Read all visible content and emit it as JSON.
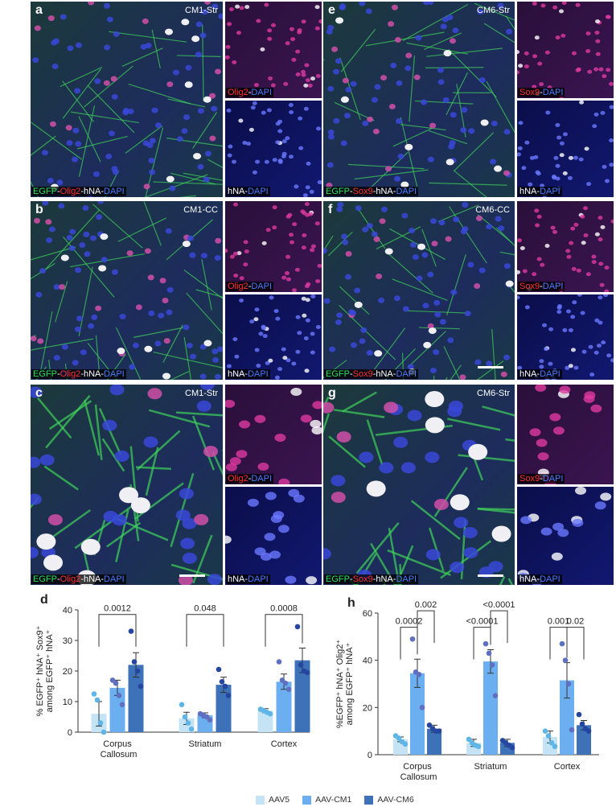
{
  "panels": [
    {
      "letter": "a",
      "corner": "CM1-Str",
      "label": [
        "EGFP",
        "-",
        "Olig2",
        "-hNA-",
        "DAPI"
      ],
      "small_top": [
        "Olig2",
        "-",
        "DAPI"
      ],
      "small_bottom": [
        "hNA-",
        "DAPI"
      ]
    },
    {
      "letter": "e",
      "corner": "CM6-Str",
      "label": [
        "EGFP",
        "-",
        "Sox9",
        "-hNA-",
        "DAPI"
      ],
      "small_top": [
        "Sox9",
        "-",
        "DAPI"
      ],
      "small_bottom": [
        "hNA-",
        "DAPI"
      ]
    },
    {
      "letter": "b",
      "corner": "CM1-CC",
      "label": [
        "EGFP",
        "-",
        "Olig2",
        "-hNA-",
        "DAPI"
      ],
      "small_top": [
        "Olig2",
        "-",
        "DAPI"
      ],
      "small_bottom": [
        "hNA-",
        "DAPI"
      ]
    },
    {
      "letter": "f",
      "corner": "CM6-CC",
      "label": [
        "EGFP",
        "-",
        "Sox9",
        "-hNA-",
        "DAPI"
      ],
      "small_top": [
        "Sox9",
        "-",
        "DAPI"
      ],
      "small_bottom": [
        "hNA-",
        "DAPI"
      ]
    },
    {
      "letter": "c",
      "corner": "CM1-Str",
      "label": [
        "EGFP",
        "-",
        "Olig2",
        "-hNA-",
        "DAPI"
      ],
      "small_top": [
        "Olig2",
        "-",
        "DAPI"
      ],
      "small_bottom": [
        "hNA-",
        "DAPI"
      ]
    },
    {
      "letter": "g",
      "corner": "CM6-Str",
      "label": [
        "EGFP",
        "-",
        "Sox9",
        "-hNA-",
        "DAPI"
      ],
      "small_top": [
        "Sox9",
        "-",
        "DAPI"
      ],
      "small_bottom": [
        "hNA-",
        "DAPI"
      ]
    }
  ],
  "chart_data": [
    {
      "type": "bar",
      "panel": "d",
      "ylabel": [
        "% EGFP⁺ hNA⁺ Sox9⁺",
        "among EGFP⁺ hNA⁺"
      ],
      "categories": [
        "Corpus Callosum",
        "Striatum",
        "Cortex"
      ],
      "ylim": [
        0,
        40
      ],
      "yticks": [
        0,
        10,
        20,
        30,
        40
      ],
      "series": [
        {
          "name": "AAV5",
          "color": "#c4e4f6",
          "point_color": "#5fb6e6",
          "values": [
            6,
            4.5,
            7
          ],
          "errors": [
            4,
            2,
            0.7
          ],
          "points": [
            [
              12.5,
              10.5,
              3,
              0
            ],
            [
              9,
              5,
              3,
              1
            ],
            [
              7.5,
              7,
              6.5,
              6
            ]
          ]
        },
        {
          "name": "AAV-CM1",
          "color": "#6caff0",
          "point_color": "#6070c0",
          "values": [
            14.5,
            5.5,
            16.5
          ],
          "errors": [
            2.5,
            0.8,
            2.5
          ],
          "points": [
            [
              17,
              16,
              12,
              9
            ],
            [
              6,
              5.5,
              5,
              4
            ],
            [
              23,
              17,
              16,
              14
            ]
          ]
        },
        {
          "name": "AAV-CM6",
          "color": "#3d72b8",
          "point_color": "#2546a0",
          "values": [
            22,
            15.5,
            23.5
          ],
          "errors": [
            4,
            2.5,
            4
          ],
          "points": [
            [
              33,
              23,
              20,
              15
            ],
            [
              20.5,
              16.5,
              15,
              12
            ],
            [
              34.5,
              22,
              20,
              19.5
            ]
          ]
        }
      ],
      "annotations": [
        [
          {
            "text": "0.0012",
            "between": [
              "AAV5",
              "AAV-CM6"
            ],
            "y": 38.5
          }
        ],
        [
          {
            "text": "0.048",
            "between": [
              "AAV5",
              "AAV-CM6"
            ],
            "y": 38.5
          }
        ],
        [
          {
            "text": "0.0008",
            "between": [
              "AAV5",
              "AAV-CM6"
            ],
            "y": 38.5
          }
        ]
      ]
    },
    {
      "type": "bar",
      "panel": "h",
      "ylabel": [
        "%EGFP⁺ hNA⁺ Olig2⁺",
        "among EGFP⁺ hNA⁺"
      ],
      "categories": [
        "Corpus Callosum",
        "Striatum",
        "Cortex"
      ],
      "ylim": [
        0,
        60
      ],
      "yticks": [
        0,
        20,
        40,
        60
      ],
      "series": [
        {
          "name": "AAV5",
          "color": "#c4e4f6",
          "point_color": "#5fb6e6",
          "values": [
            6.5,
            5,
            7.5
          ],
          "errors": [
            1,
            1.5,
            2.5
          ],
          "points": [
            [
              8,
              7,
              5.5,
              4.5
            ],
            [
              6.5,
              5,
              4,
              3.5
            ],
            [
              10,
              8,
              5,
              3.5
            ]
          ]
        },
        {
          "name": "AAV-CM1",
          "color": "#6caff0",
          "point_color": "#6070c0",
          "values": [
            34.5,
            39.5,
            31.5
          ],
          "errors": [
            6,
            5,
            7.5
          ],
          "points": [
            [
              49,
              35,
              34,
              20
            ],
            [
              47,
              43,
              38,
              25
            ],
            [
              47,
              40,
              30,
              10.5
            ]
          ]
        },
        {
          "name": "AAV-CM6",
          "color": "#3d72b8",
          "point_color": "#2546a0",
          "values": [
            11,
            5,
            12.5
          ],
          "errors": [
            1.5,
            1.5,
            2
          ],
          "points": [
            [
              12.5,
              11,
              10,
              10
            ],
            [
              6,
              5,
              4,
              3
            ],
            [
              17,
              13,
              11,
              10
            ]
          ]
        }
      ],
      "annotations": [
        [
          {
            "text": "0.0002",
            "between": [
              "AAV5",
              "AAV-CM1"
            ],
            "y": 54
          },
          {
            "text": "0.002",
            "between": [
              "AAV-CM1",
              "AAV-CM6"
            ],
            "y": 61
          }
        ],
        [
          {
            "text": "<0.0001",
            "between": [
              "AAV5",
              "AAV-CM1"
            ],
            "y": 54
          },
          {
            "text": "<0.0001",
            "between": [
              "AAV-CM1",
              "AAV-CM6"
            ],
            "y": 61
          }
        ],
        [
          {
            "text": "0.001",
            "between": [
              "AAV5",
              "AAV-CM1"
            ],
            "y": 54
          },
          {
            "text": "0.02",
            "between": [
              "AAV-CM1",
              "AAV-CM6"
            ],
            "y": 54
          }
        ]
      ]
    }
  ]
}
